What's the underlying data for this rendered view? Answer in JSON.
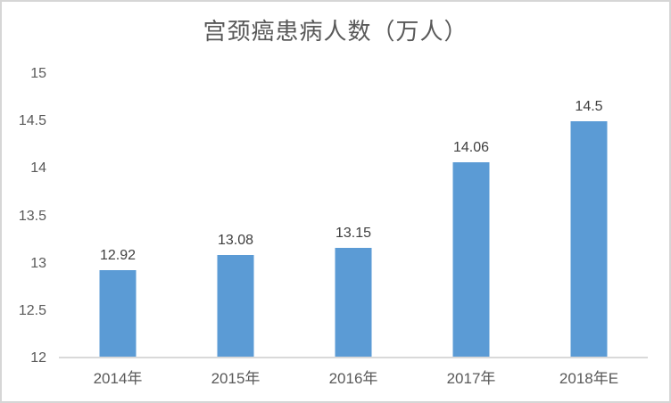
{
  "chart_data": {
    "type": "bar",
    "title": "宫颈癌患病人数（万人）",
    "categories": [
      "2014年",
      "2015年",
      "2016年",
      "2017年",
      "2018年E"
    ],
    "values": [
      12.92,
      13.08,
      13.15,
      14.06,
      14.5
    ],
    "value_labels": [
      "12.92",
      "13.08",
      "13.15",
      "14.06",
      "14.5"
    ],
    "xlabel": "",
    "ylabel": "",
    "ylim": [
      12,
      15
    ],
    "y_ticks": [
      {
        "value": 12,
        "label": "12"
      },
      {
        "value": 12.5,
        "label": "12.5"
      },
      {
        "value": 13,
        "label": "13"
      },
      {
        "value": 13.5,
        "label": "13.5"
      },
      {
        "value": 14,
        "label": "14"
      },
      {
        "value": 14.5,
        "label": "14.5"
      },
      {
        "value": 15,
        "label": "15"
      }
    ],
    "grid": false,
    "legend": "none",
    "bar_color": "#5b9bd5",
    "axis_line_color": "#d9d9d9",
    "title_color": "#595959",
    "tick_label_color": "#595959",
    "data_label_color": "#3f3f3f"
  }
}
